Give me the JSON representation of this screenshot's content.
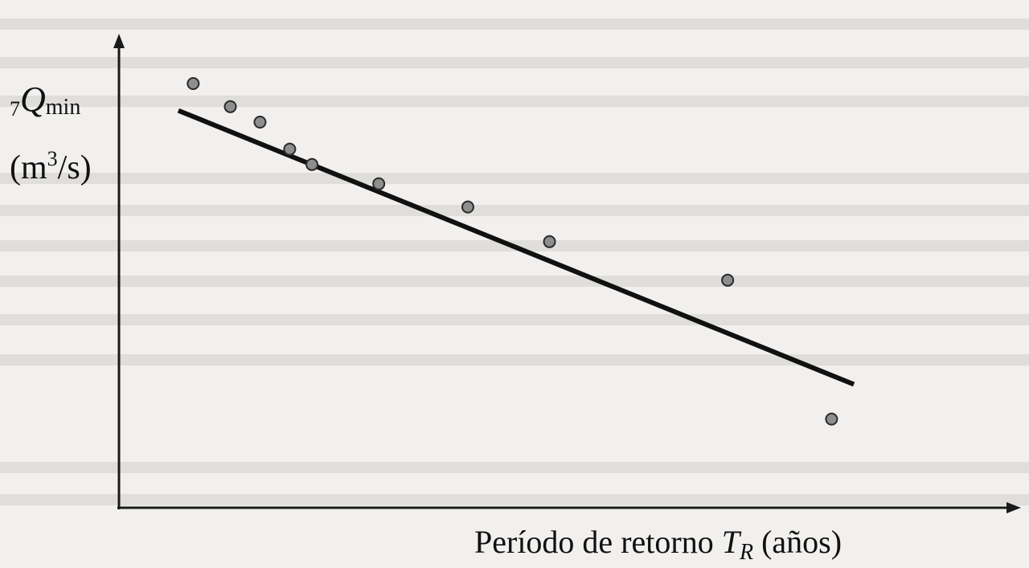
{
  "chart_data": {
    "type": "scatter",
    "title": "",
    "ylabel": {
      "prefix": "7",
      "symbol": "Q",
      "subscript": "min",
      "unit_open": "(m",
      "unit_sup": "3",
      "unit_close": "/s)"
    },
    "xlabel": {
      "text": "Período de retorno ",
      "symbol": "T",
      "subscript": "R",
      "suffix": " (años)"
    },
    "xlim": [
      0,
      12
    ],
    "ylim": [
      0,
      12
    ],
    "grid": false,
    "legend": "none",
    "series": [
      {
        "name": "",
        "points": [
          {
            "x": 1.0,
            "y": 11.0
          },
          {
            "x": 1.5,
            "y": 10.4
          },
          {
            "x": 1.9,
            "y": 10.0
          },
          {
            "x": 2.3,
            "y": 9.3
          },
          {
            "x": 2.6,
            "y": 8.9
          },
          {
            "x": 3.5,
            "y": 8.4
          },
          {
            "x": 4.7,
            "y": 7.8
          },
          {
            "x": 5.8,
            "y": 6.9
          },
          {
            "x": 8.2,
            "y": 5.9
          },
          {
            "x": 9.6,
            "y": 2.3
          }
        ]
      }
    ],
    "trendline": {
      "x": [
        0.8,
        9.9
      ],
      "y": [
        10.3,
        3.2
      ]
    },
    "colors": {
      "points": "#8e8e8e",
      "line": "#111111",
      "axis": "#1a1a1a"
    }
  }
}
